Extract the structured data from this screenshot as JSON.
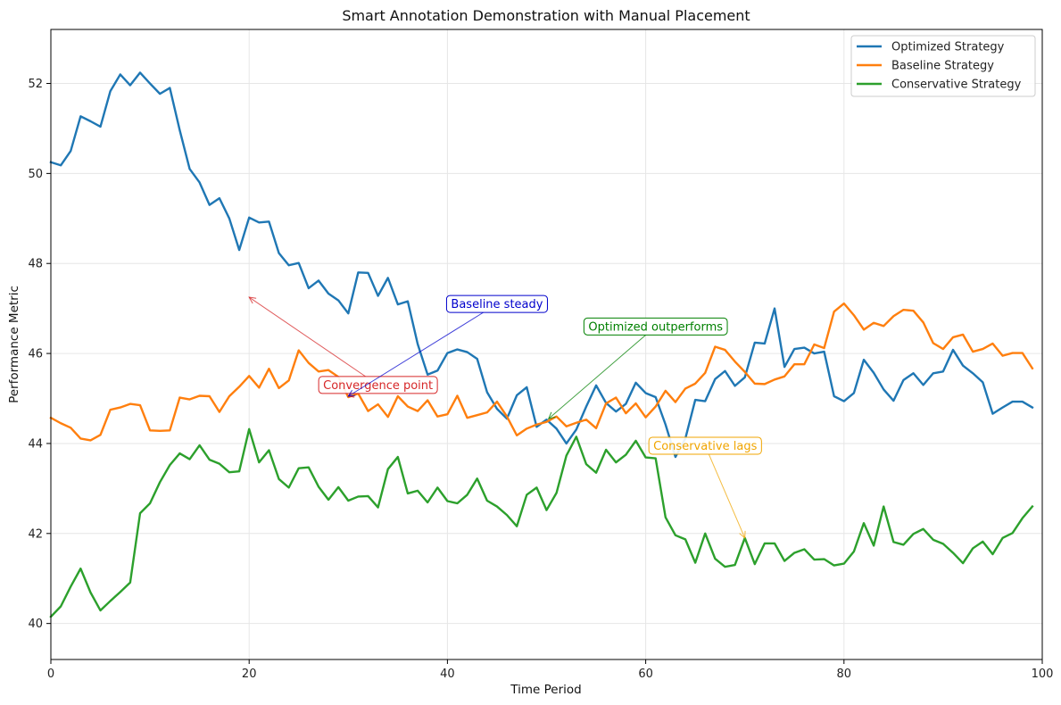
{
  "chart_data": {
    "type": "line",
    "title": "Smart Annotation Demonstration with Manual Placement",
    "xlabel": "Time Period",
    "ylabel": "Performance Metric",
    "xlim": [
      0,
      100
    ],
    "ylim": [
      39.2,
      53.2
    ],
    "xticks": [
      0,
      20,
      40,
      60,
      80,
      100
    ],
    "yticks": [
      40,
      42,
      44,
      46,
      48,
      50,
      52
    ],
    "grid": true,
    "legend_placement": "top-right",
    "series": [
      {
        "name": "Optimized Strategy",
        "color": "#1f77b4",
        "values": [
          50.25,
          50.18,
          50.5,
          51.27,
          51.16,
          51.04,
          51.83,
          52.2,
          51.96,
          52.24,
          52.0,
          51.77,
          51.9,
          50.96,
          50.1,
          49.8,
          49.3,
          49.45,
          49.0,
          48.3,
          49.02,
          48.91,
          48.93,
          48.23,
          47.96,
          48.01,
          47.45,
          47.62,
          47.33,
          47.18,
          46.89,
          47.8,
          47.79,
          47.28,
          47.68,
          47.09,
          47.16,
          46.21,
          45.53,
          45.62,
          46.01,
          46.09,
          46.03,
          45.88,
          45.14,
          44.77,
          44.55,
          45.07,
          45.25,
          44.37,
          44.53,
          44.33,
          44.0,
          44.31,
          44.82,
          45.29,
          44.9,
          44.71,
          44.88,
          45.35,
          45.12,
          45.03,
          44.42,
          43.7,
          44.11,
          44.97,
          44.94,
          45.43,
          45.61,
          45.28,
          45.47,
          46.24,
          46.22,
          47.0,
          45.7,
          46.1,
          46.13,
          46.0,
          46.04,
          45.05,
          44.94,
          45.12,
          45.86,
          45.57,
          45.2,
          44.95,
          45.41,
          45.56,
          45.3,
          45.56,
          45.6,
          46.08,
          45.73,
          45.56,
          45.36,
          44.66,
          44.8,
          44.93,
          44.93,
          44.8
        ]
      },
      {
        "name": "Baseline Strategy",
        "color": "#ff7f0e",
        "values": [
          44.57,
          44.45,
          44.35,
          44.11,
          44.07,
          44.19,
          44.75,
          44.8,
          44.88,
          44.85,
          44.29,
          44.28,
          44.29,
          45.02,
          44.98,
          45.06,
          45.05,
          44.7,
          45.05,
          45.26,
          45.5,
          45.24,
          45.66,
          45.23,
          45.4,
          46.07,
          45.79,
          45.6,
          45.63,
          45.48,
          45.03,
          45.11,
          44.72,
          44.87,
          44.59,
          45.05,
          44.82,
          44.72,
          44.96,
          44.6,
          44.65,
          45.06,
          44.57,
          44.63,
          44.69,
          44.93,
          44.6,
          44.18,
          44.33,
          44.42,
          44.48,
          44.6,
          44.38,
          44.46,
          44.53,
          44.34,
          44.89,
          45.02,
          44.67,
          44.89,
          44.58,
          44.82,
          45.17,
          44.92,
          45.22,
          45.33,
          45.57,
          46.15,
          46.08,
          45.82,
          45.59,
          45.33,
          45.32,
          45.42,
          45.49,
          45.76,
          45.76,
          46.2,
          46.12,
          46.93,
          47.11,
          46.85,
          46.53,
          46.68,
          46.61,
          46.83,
          46.97,
          46.95,
          46.69,
          46.23,
          46.1,
          46.36,
          46.42,
          46.04,
          46.1,
          46.22,
          45.95,
          46.01,
          46.01,
          45.67
        ]
      },
      {
        "name": "Conservative Strategy",
        "color": "#2ca02c",
        "values": [
          40.15,
          40.38,
          40.82,
          41.22,
          40.69,
          40.29,
          40.5,
          40.7,
          40.91,
          42.45,
          42.67,
          43.14,
          43.52,
          43.78,
          43.65,
          43.96,
          43.64,
          43.55,
          43.36,
          43.38,
          44.32,
          43.58,
          43.85,
          43.21,
          43.02,
          43.45,
          43.47,
          43.04,
          42.75,
          43.03,
          42.73,
          42.82,
          42.83,
          42.58,
          43.43,
          43.7,
          42.89,
          42.95,
          42.69,
          43.02,
          42.72,
          42.67,
          42.86,
          43.22,
          42.73,
          42.6,
          42.41,
          42.16,
          42.86,
          43.02,
          42.52,
          42.9,
          43.73,
          44.15,
          43.54,
          43.35,
          43.86,
          43.58,
          43.75,
          44.06,
          43.69,
          43.67,
          42.36,
          41.96,
          41.87,
          41.35,
          42.0,
          41.44,
          41.26,
          41.3,
          41.9,
          41.32,
          41.78,
          41.78,
          41.39,
          41.57,
          41.65,
          41.42,
          41.43,
          41.29,
          41.33,
          41.6,
          42.23,
          41.73,
          42.6,
          41.81,
          41.75,
          41.99,
          42.1,
          41.86,
          41.77,
          41.57,
          41.34,
          41.67,
          41.82,
          41.54,
          41.9,
          42.01,
          42.34,
          42.6
        ]
      }
    ],
    "annotations": [
      {
        "text": "Convergence point",
        "color": "#d62728",
        "text_x": 33,
        "text_y": 45.3,
        "arrow_x": 20,
        "arrow_y": 47.25,
        "pointer_x": 30,
        "pointer_y": 45.05
      },
      {
        "text": "Baseline steady",
        "color": "#0000cc",
        "text_x": 45,
        "text_y": 47.1,
        "arrow_x": 30,
        "arrow_y": 45.05
      },
      {
        "text": "Optimized outperforms",
        "color": "#008000",
        "text_x": 61,
        "text_y": 46.6,
        "arrow_x": 50.2,
        "arrow_y": 44.55
      },
      {
        "text": "Conservative lags",
        "color": "#f0a500",
        "text_x": 66,
        "text_y": 43.95,
        "arrow_x": 70,
        "arrow_y": 41.9
      }
    ]
  }
}
